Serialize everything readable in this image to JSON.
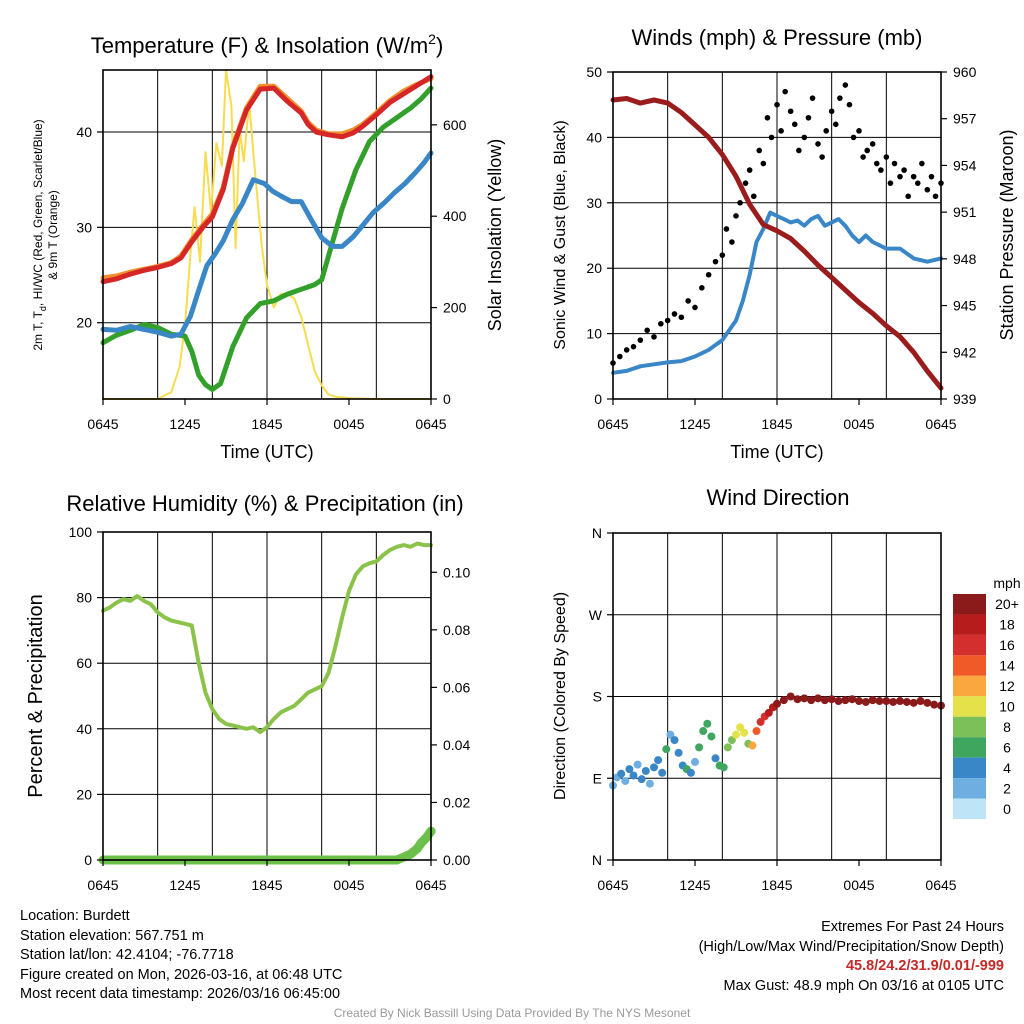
{
  "chart_data": [
    {
      "id": "temperature",
      "type": "line",
      "title_main": "Temperature (F) & Insolation (W/m",
      "title_sup": "2",
      "title_end": ")",
      "xlabel": "Time (UTC)",
      "ylabel_line1": "2m T, T",
      "ylabel_sub": "d",
      "ylabel_line1_end": ", HI/WC (Red, Green, Scarlet/Blue)",
      "ylabel_line2": "& 9m T (Orange)",
      "y2label": "Solar Insolation (Yellow)",
      "x_ticks": [
        "0645",
        "1245",
        "1845",
        "0045",
        "0645"
      ],
      "y_ticks": [
        20,
        30,
        40
      ],
      "y2_ticks": [
        0,
        200,
        400,
        600
      ],
      "xlim": [
        0,
        24
      ],
      "ylim": [
        12,
        46.5
      ],
      "y2lim": [
        0,
        720
      ],
      "series": [
        {
          "name": "9m T",
          "axis": "left",
          "color": "#f28e2b",
          "width": 5,
          "x": [
            0,
            1,
            2,
            3,
            4,
            5,
            5.7,
            6.5,
            7.3,
            8,
            8.8,
            9.5,
            10.5,
            11.5,
            12.5,
            13.5,
            14.5,
            15,
            15.6,
            16.5,
            17.5,
            18.3,
            19,
            20,
            21,
            22,
            23,
            24
          ],
          "values": [
            24.7,
            24.9,
            25.3,
            25.6,
            25.9,
            26.3,
            27,
            28.7,
            30.2,
            31.4,
            34.2,
            38.5,
            42.5,
            44.8,
            44.8,
            43.5,
            42.2,
            41,
            40.2,
            39.8,
            39.8,
            40.2,
            40.8,
            42,
            43.3,
            44.3,
            45,
            45.6
          ]
        },
        {
          "name": "2m T",
          "axis": "left",
          "color": "#d62728",
          "width": 5,
          "x": [
            0,
            1,
            2,
            3,
            4,
            5,
            5.7,
            6.5,
            7.3,
            8,
            8.8,
            9.5,
            10.5,
            11.5,
            12.5,
            13.5,
            14.5,
            15,
            15.6,
            16.5,
            17.5,
            18.3,
            19,
            20,
            21,
            22,
            23,
            24
          ],
          "values": [
            24.3,
            24.6,
            25.1,
            25.5,
            25.8,
            26.2,
            26.8,
            28.5,
            30,
            31.1,
            34,
            38.3,
            42.3,
            44.5,
            44.6,
            43.2,
            42,
            40.8,
            40,
            39.7,
            39.5,
            39.9,
            40.6,
            41.8,
            43.1,
            44,
            44.9,
            45.8
          ]
        },
        {
          "name": "Dewpoint",
          "axis": "left",
          "color": "#33a02c",
          "width": 5,
          "x": [
            0,
            1,
            2,
            3,
            4,
            5,
            6,
            6.5,
            7,
            7.5,
            8,
            8.6,
            9.5,
            10.5,
            11.5,
            12.5,
            13.5,
            14.5,
            15.5,
            16,
            16.5,
            17.5,
            18.5,
            19.5,
            20.5,
            21.5,
            22.5,
            23.3,
            24
          ],
          "values": [
            17.9,
            18.7,
            19.2,
            19.8,
            19.5,
            18.8,
            18.6,
            17,
            14.5,
            13.5,
            13,
            13.6,
            17.5,
            20.5,
            22,
            22.3,
            23,
            23.5,
            24,
            24.5,
            27,
            32,
            36,
            39,
            40.5,
            41.5,
            42.5,
            43.5,
            44.6
          ]
        },
        {
          "name": "HI/WC",
          "axis": "left",
          "color": "#3a87c8",
          "width": 5,
          "x": [
            0,
            1,
            2,
            3,
            4,
            5,
            5.7,
            6.4,
            7,
            7.6,
            8.2,
            8.8,
            9.5,
            10.2,
            11,
            11.8,
            12.4,
            13,
            13.8,
            14.5,
            15.2,
            16,
            16.8,
            17.5,
            18.3,
            19,
            19.8,
            20.6,
            21.3,
            22.1,
            22.9,
            23.5,
            24
          ],
          "values": [
            19.3,
            19.2,
            19.6,
            19.3,
            19,
            18.6,
            18.8,
            20.7,
            23.4,
            26,
            27.2,
            28.6,
            30.8,
            32.5,
            35,
            34.6,
            33.8,
            33.3,
            32.7,
            32.7,
            30.9,
            28.9,
            28,
            28,
            29,
            30.2,
            31.6,
            32.6,
            33.6,
            34.6,
            35.8,
            36.8,
            37.8
          ]
        },
        {
          "name": "Solar Insolation",
          "axis": "right",
          "color": "#f7dc4f",
          "width": 2,
          "x": [
            0,
            4,
            5,
            5.6,
            6,
            6.4,
            6.7,
            7.1,
            7.5,
            7.9,
            8.3,
            8.7,
            9,
            9.4,
            9.7,
            10,
            10.3,
            10.7,
            11,
            11.3,
            11.6,
            12,
            12.5,
            13,
            13.5,
            14,
            14.5,
            15,
            15.5,
            16,
            16.5,
            17,
            18,
            20,
            24
          ],
          "values": [
            0,
            0,
            15,
            70,
            160,
            320,
            420,
            300,
            540,
            410,
            560,
            510,
            720,
            640,
            330,
            590,
            520,
            650,
            540,
            440,
            340,
            250,
            200,
            230,
            230,
            220,
            180,
            120,
            60,
            30,
            10,
            5,
            2,
            0,
            0
          ]
        }
      ]
    },
    {
      "id": "winds",
      "type": "scatter",
      "title": "Winds (mph) & Pressure (mb)",
      "xlabel": "Time (UTC)",
      "ylabel": "Sonic Wind & Gust (Blue, Black)",
      "y2label": "Station Pressure (Maroon)",
      "x_ticks": [
        "0645",
        "1245",
        "1845",
        "0045",
        "0645"
      ],
      "y_ticks": [
        0,
        10,
        20,
        30,
        40,
        50
      ],
      "y2_ticks": [
        939,
        942,
        945,
        948,
        951,
        954,
        957,
        960
      ],
      "xlim": [
        0,
        24
      ],
      "ylim": [
        0,
        50
      ],
      "y2lim": [
        939,
        960
      ],
      "series": [
        {
          "name": "Sonic Wind",
          "axis": "left",
          "color": "#3a87c8",
          "width": 4,
          "x": [
            0,
            1,
            2,
            3,
            4,
            5,
            6,
            7,
            8,
            9,
            9.5,
            10,
            10.5,
            11,
            11.5,
            12,
            12.5,
            13,
            13.5,
            14,
            14.5,
            15,
            15.5,
            16,
            16.5,
            17,
            17.5,
            18,
            18.5,
            19,
            20,
            21,
            22,
            23,
            24
          ],
          "values": [
            4,
            4.3,
            5,
            5.3,
            5.6,
            5.8,
            6.5,
            7.5,
            9,
            12,
            15,
            19,
            24,
            26,
            28.5,
            28,
            27.5,
            27,
            27.3,
            26.5,
            27.5,
            28,
            26.5,
            27,
            27.5,
            26.5,
            25,
            24,
            25,
            24,
            23,
            23,
            21.5,
            21,
            21.5
          ]
        },
        {
          "name": "Gust",
          "axis": "left",
          "color": "#000000",
          "marker": "dot",
          "x": [
            0,
            0.5,
            1,
            1.5,
            2,
            2.5,
            3,
            3.5,
            4,
            4.5,
            5,
            5.5,
            6,
            6.5,
            7,
            7.5,
            8,
            8.3,
            8.7,
            9,
            9.3,
            9.7,
            10,
            10.3,
            10.7,
            11,
            11.3,
            11.6,
            12,
            12.3,
            12.6,
            13,
            13.3,
            13.6,
            14,
            14.3,
            14.6,
            15,
            15.3,
            15.6,
            16,
            16.3,
            16.6,
            17,
            17.3,
            17.6,
            18,
            18.3,
            18.6,
            19,
            19.3,
            19.6,
            20,
            20.3,
            20.6,
            21,
            21.3,
            21.6,
            22,
            22.3,
            22.6,
            23,
            23.3,
            23.6,
            24
          ],
          "values": [
            5.5,
            6.5,
            7.5,
            8,
            9,
            10.5,
            9.5,
            11.5,
            12,
            13,
            12.5,
            15,
            14,
            17,
            19,
            21,
            22,
            26,
            24,
            28,
            30,
            33,
            35,
            31,
            38,
            36,
            43,
            40,
            45,
            41,
            47,
            44,
            42,
            38,
            40,
            43,
            46,
            39,
            37,
            41,
            44,
            42,
            46,
            48,
            45,
            40,
            41,
            37,
            38,
            39,
            36,
            35,
            37,
            33,
            36,
            34,
            35,
            31,
            34,
            33,
            36,
            32,
            34,
            31,
            33
          ]
        },
        {
          "name": "Station Pressure",
          "axis": "right",
          "color": "#9b1c1c",
          "width": 5,
          "x": [
            0,
            1,
            2,
            3,
            4,
            5,
            6,
            7,
            8,
            9,
            10,
            11,
            12,
            13,
            14,
            15,
            16,
            17,
            18,
            19,
            20,
            21,
            22,
            23,
            24
          ],
          "values": [
            958.2,
            958.3,
            958,
            958.2,
            958,
            957.4,
            956.6,
            955.8,
            954.7,
            953.3,
            951.5,
            950.2,
            949.8,
            949.3,
            948.5,
            947.6,
            946.8,
            946,
            945.2,
            944.5,
            943.7,
            943,
            942,
            940.8,
            939.7
          ]
        }
      ]
    },
    {
      "id": "humidity",
      "type": "line",
      "title": "Relative Humidity (%) & Precipitation (in)",
      "ylabel": "Percent & Precipitation",
      "x_ticks": [
        "0645",
        "1245",
        "1845",
        "0045",
        "0645"
      ],
      "y_ticks": [
        0,
        20,
        40,
        60,
        80,
        100
      ],
      "y2_ticks": [
        "0.00",
        "0.02",
        "0.04",
        "0.06",
        "0.08",
        "0.10"
      ],
      "xlim": [
        0,
        24
      ],
      "ylim": [
        0,
        100
      ],
      "y2lim": [
        0,
        0.114
      ],
      "series": [
        {
          "name": "Relative Humidity",
          "axis": "left",
          "color": "#8bc34a",
          "width": 4,
          "x": [
            0,
            0.5,
            1,
            1.5,
            2,
            2.5,
            3,
            3.5,
            4,
            4.5,
            5,
            5.5,
            6,
            6.5,
            7,
            7.5,
            8,
            8.5,
            9,
            9.5,
            10,
            10.5,
            11,
            11.5,
            12,
            12.5,
            13,
            13.5,
            14,
            14.5,
            15,
            15.5,
            16,
            16.5,
            17,
            17.5,
            18,
            18.5,
            19,
            19.5,
            20,
            20.5,
            21,
            21.5,
            22,
            22.5,
            23,
            23.5,
            24
          ],
          "values": [
            76,
            77,
            78.5,
            79.5,
            79,
            80.5,
            79,
            78,
            75.5,
            74,
            73,
            72.5,
            72,
            71.5,
            60,
            51,
            46,
            43,
            41.5,
            41,
            40.5,
            40,
            40.5,
            39,
            40.5,
            43,
            45,
            46,
            47,
            49,
            51,
            52,
            53,
            57,
            65,
            74,
            82,
            87,
            89.5,
            90.5,
            91,
            93,
            94.5,
            95.5,
            96,
            95.5,
            96.5,
            96,
            96
          ]
        },
        {
          "name": "Precipitation",
          "axis": "right",
          "color": "#6cc04a",
          "width": 9,
          "x": [
            0,
            20.5,
            21,
            21.5,
            22,
            22.5,
            23,
            23.3,
            23.7,
            24
          ],
          "values": [
            0,
            0,
            0,
            0,
            0.001,
            0.002,
            0.004,
            0.006,
            0.008,
            0.01
          ]
        }
      ]
    },
    {
      "id": "direction",
      "type": "scatter",
      "title": "Wind Direction",
      "ylabel": "Direction (Colored By Speed)",
      "x_ticks": [
        "0645",
        "1245",
        "1845",
        "0045",
        "0645"
      ],
      "y_ticks": [
        "N",
        "E",
        "S",
        "W",
        "N"
      ],
      "xlim": [
        0,
        24
      ],
      "ylim": [
        0,
        360
      ],
      "colorbar_title": "mph",
      "colorbar_labels": [
        "20+",
        "18",
        "16",
        "14",
        "12",
        "10",
        "8",
        "6",
        "4",
        "2",
        "0"
      ],
      "colorbar_colors": [
        "#8b1a1a",
        "#b71c1c",
        "#d32f2f",
        "#f05a28",
        "#f9a73e",
        "#e4e14a",
        "#7cc05a",
        "#3fa660",
        "#3a87c8",
        "#6faee0",
        "#bde4f7"
      ],
      "points": {
        "x": [
          0,
          0.3,
          0.6,
          0.9,
          1.2,
          1.5,
          1.8,
          2.1,
          2.4,
          2.7,
          3,
          3.3,
          3.6,
          3.9,
          4.2,
          4.5,
          4.8,
          5.1,
          5.4,
          5.7,
          6,
          6.3,
          6.6,
          6.9,
          7.2,
          7.5,
          7.8,
          8.1,
          8.4,
          8.7,
          9,
          9.3,
          9.6,
          9.9,
          10.2,
          10.5,
          10.8,
          11.1,
          11.4,
          11.7,
          12,
          12.5,
          13,
          13.5,
          14,
          14.5,
          15,
          15.5,
          16,
          16.5,
          17,
          17.5,
          18,
          18.5,
          19,
          19.5,
          20,
          20.5,
          21,
          21.5,
          22,
          22.5,
          23,
          23.5,
          24
        ],
        "values": [
          82,
          91,
          95,
          87,
          100,
          93,
          105,
          89,
          98,
          84,
          102,
          110,
          96,
          122,
          138,
          132,
          118,
          104,
          100,
          96,
          108,
          124,
          142,
          150,
          136,
          112,
          104,
          102,
          124,
          132,
          138,
          146,
          140,
          128,
          126,
          142,
          152,
          158,
          162,
          168,
          172,
          176,
          180,
          177,
          178,
          176,
          178,
          176,
          177,
          175,
          176,
          177,
          175,
          174,
          176,
          175,
          175,
          174,
          175,
          174,
          173,
          175,
          173,
          171,
          170
        ],
        "speeds": [
          3,
          3,
          4,
          3,
          5,
          4,
          3,
          4,
          5,
          3,
          4,
          4,
          5,
          6,
          3,
          4,
          5,
          5,
          6,
          4,
          3,
          6,
          6,
          7,
          6,
          5,
          6,
          7,
          9,
          8,
          10,
          11,
          10,
          9,
          13,
          15,
          16,
          16,
          18,
          19,
          20,
          21,
          22,
          22,
          21,
          22,
          21,
          22,
          22,
          21,
          22,
          21,
          22,
          21,
          22,
          21,
          21,
          22,
          21,
          22,
          21,
          22,
          21,
          22,
          21
        ]
      }
    }
  ],
  "info": {
    "location": "Location: Burdett",
    "elevation": "Station elevation: 567.751 m",
    "latlon": "Station lat/lon: 42.4104; -76.7718",
    "created": "Figure created on Mon, 2026-03-16, at 06:48 UTC",
    "recent": "Most recent data timestamp: 2026/03/16 06:45:00"
  },
  "extremes": {
    "heading": "Extremes For Past 24 Hours",
    "legend": "(High/Low/Max Wind/Precipitation/Snow Depth)",
    "values": "45.8/24.2/31.9/0.01/-999",
    "max_gust": "Max Gust: 48.9 mph On 03/16 at 0105 UTC"
  },
  "credit": "Created By Nick Bassill Using Data Provided By The NYS Mesonet"
}
